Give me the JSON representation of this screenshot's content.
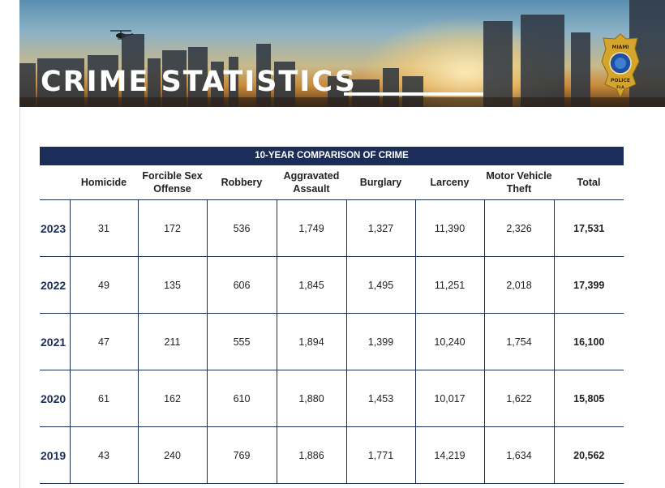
{
  "header": {
    "title": "CRIME STATISTICS",
    "badge": {
      "line1": "MIAMI",
      "line2": "POLICE",
      "line3": "FLA"
    }
  },
  "table": {
    "caption": "10-YEAR COMPARISON OF CRIME",
    "columns": [
      "",
      "Homicide",
      "Forcible Sex Offense",
      "Robbery",
      "Aggravated Assault",
      "Burglary",
      "Larceny",
      "Motor Vehicle Theft",
      "Total"
    ],
    "rows": [
      [
        "2023",
        "31",
        "172",
        "536",
        "1,749",
        "1,327",
        "11,390",
        "2,326",
        "17,531"
      ],
      [
        "2022",
        "49",
        "135",
        "606",
        "1,845",
        "1,495",
        "11,251",
        "2,018",
        "17,399"
      ],
      [
        "2021",
        "47",
        "211",
        "555",
        "1,894",
        "1,399",
        "10,240",
        "1,754",
        "16,100"
      ],
      [
        "2020",
        "61",
        "162",
        "610",
        "1,880",
        "1,453",
        "10,017",
        "1,622",
        "15,805"
      ],
      [
        "2019",
        "43",
        "240",
        "769",
        "1,886",
        "1,771",
        "14,219",
        "1,634",
        "20,562"
      ]
    ]
  },
  "colors": {
    "navy": "#1b2e59",
    "badge_gold": "#d4a52a",
    "badge_blue": "#1f4fa3"
  }
}
